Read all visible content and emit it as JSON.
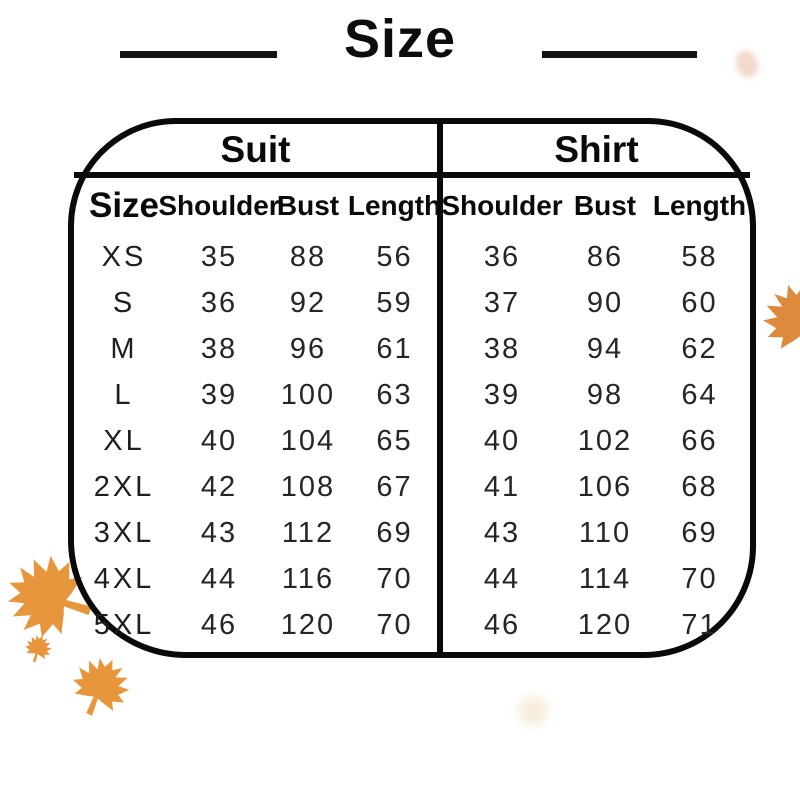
{
  "title": {
    "text": "Size"
  },
  "table": {
    "section_headers": {
      "suit": "Suit",
      "shirt": "Shirt"
    },
    "size_column_header": "Size",
    "measure_headers": [
      "Shoulder",
      "Bust",
      "Length"
    ]
  },
  "chart_data": {
    "type": "table",
    "title": "Size",
    "row_header_column": "Size",
    "sections": [
      {
        "name": "Suit",
        "columns": [
          "Shoulder",
          "Bust",
          "Length"
        ]
      },
      {
        "name": "Shirt",
        "columns": [
          "Shoulder",
          "Bust",
          "Length"
        ]
      }
    ],
    "rows": [
      {
        "size": "XS",
        "suit": [
          35,
          88,
          56
        ],
        "shirt": [
          36,
          86,
          58
        ]
      },
      {
        "size": "S",
        "suit": [
          36,
          92,
          59
        ],
        "shirt": [
          37,
          90,
          60
        ]
      },
      {
        "size": "M",
        "suit": [
          38,
          96,
          61
        ],
        "shirt": [
          38,
          94,
          62
        ]
      },
      {
        "size": "L",
        "suit": [
          39,
          100,
          63
        ],
        "shirt": [
          39,
          98,
          64
        ]
      },
      {
        "size": "XL",
        "suit": [
          40,
          104,
          65
        ],
        "shirt": [
          40,
          102,
          66
        ]
      },
      {
        "size": "2XL",
        "suit": [
          42,
          108,
          67
        ],
        "shirt": [
          41,
          106,
          68
        ]
      },
      {
        "size": "3XL",
        "suit": [
          43,
          112,
          69
        ],
        "shirt": [
          43,
          110,
          69
        ]
      },
      {
        "size": "4XL",
        "suit": [
          44,
          116,
          70
        ],
        "shirt": [
          44,
          114,
          70
        ]
      },
      {
        "size": "5XL",
        "suit": [
          46,
          120,
          70
        ],
        "shirt": [
          46,
          120,
          71
        ]
      }
    ]
  },
  "decorations": {
    "leaf_color": "#E8963C",
    "icons": [
      "maple-leaf-icon"
    ]
  }
}
